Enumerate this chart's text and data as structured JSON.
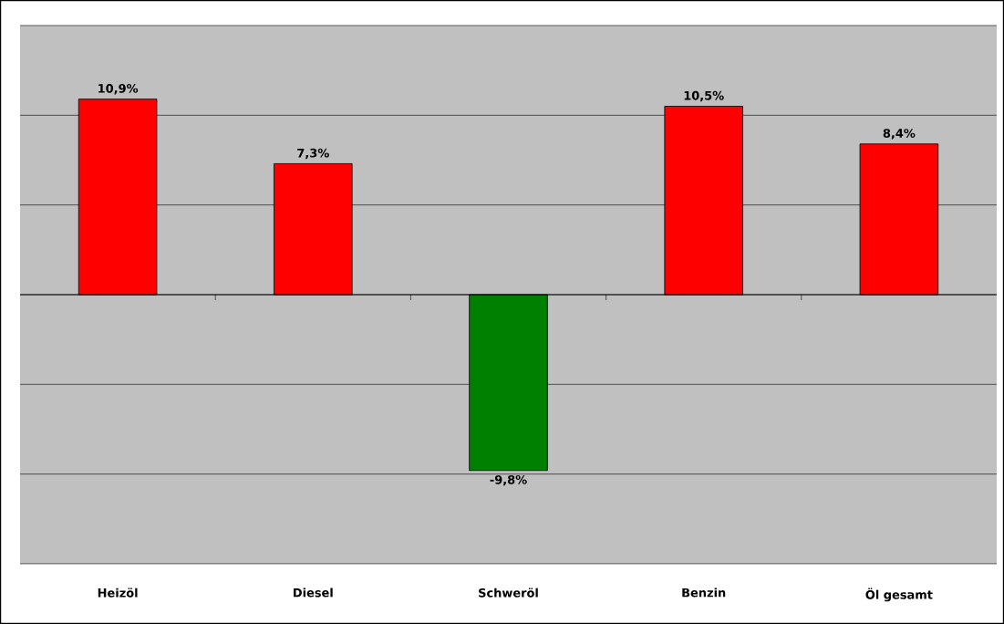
{
  "chart_data": {
    "type": "bar",
    "categories": [
      "Heizöl",
      "Diesel",
      "Schweröl",
      "Benzin",
      "Öl gesamt"
    ],
    "values": [
      10.9,
      7.3,
      -9.8,
      10.5,
      8.4
    ],
    "colors": [
      "#ff0000",
      "#ff0000",
      "#008000",
      "#ff0000",
      "#ff0000"
    ],
    "value_labels": [
      "10,9%",
      "7,3%",
      "-9,8%",
      "10,5%",
      "8,4%"
    ],
    "ylim": [
      -15,
      15
    ],
    "yticks": [
      {
        "value": -15,
        "label": null
      },
      {
        "value": -10,
        "label": null
      },
      {
        "value": -5,
        "label": null
      },
      {
        "value": 0,
        "label": null
      },
      {
        "value": 5,
        "label": null
      },
      {
        "value": 10,
        "label": null
      },
      {
        "value": 15,
        "label": null
      }
    ],
    "grid": "y",
    "tick_labels": "x"
  }
}
